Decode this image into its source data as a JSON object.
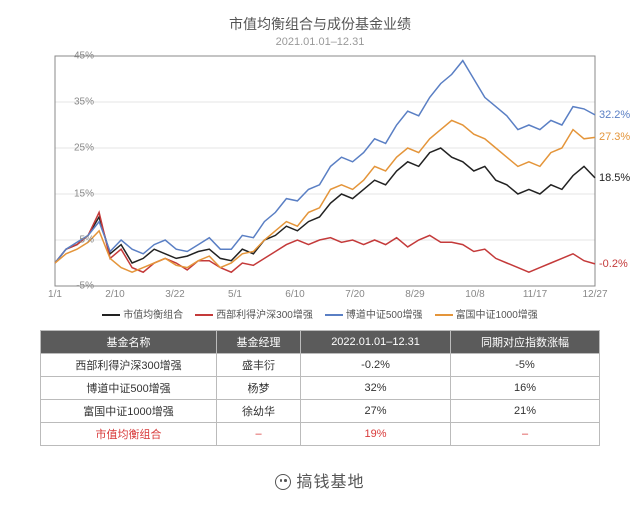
{
  "title": "市值均衡组合与成份基金业绩",
  "subtitle": "2021.01.01–12.31",
  "chart": {
    "type": "line",
    "ylim": [
      -5,
      45
    ],
    "yticks": [
      -5,
      5,
      15,
      25,
      35,
      45
    ],
    "ytick_labels": [
      "-5%",
      "5%",
      "15%",
      "25%",
      "35%",
      "45%"
    ],
    "xtick_labels": [
      "1/1",
      "2/10",
      "3/22",
      "5/1",
      "6/10",
      "7/20",
      "8/29",
      "10/8",
      "11/17",
      "12/27"
    ],
    "x_count": 50,
    "background_color": "#ffffff",
    "grid_color": "#e5e5e5",
    "series": [
      {
        "name": "市值均衡组合",
        "color": "#222222",
        "end_label": "18.5%",
        "data": [
          0,
          3,
          4,
          6,
          10,
          2,
          4,
          0,
          1,
          3,
          2,
          1,
          1.5,
          2.5,
          3,
          1,
          0.5,
          3,
          2,
          5,
          6,
          8,
          7,
          9,
          10,
          13,
          15,
          14,
          16,
          18,
          17,
          20,
          22,
          21,
          24,
          25,
          23,
          22,
          20,
          21,
          18,
          17,
          15,
          16,
          15,
          17,
          16,
          19,
          21,
          18.5
        ]
      },
      {
        "name": "西部利得沪深300增强",
        "color": "#c43a3a",
        "end_label": "-0.2%",
        "data": [
          0,
          3,
          4,
          6,
          11,
          1,
          3,
          -1,
          -2,
          0,
          1,
          0,
          -1.5,
          0.5,
          0.5,
          -1,
          -2,
          0,
          -0.5,
          1,
          2.5,
          4,
          5,
          4,
          5,
          5.5,
          4.5,
          5,
          4,
          5,
          4,
          5.5,
          3.5,
          5,
          6,
          4.5,
          4.5,
          4,
          2.5,
          3,
          1,
          0,
          -1,
          -2,
          -1,
          0,
          1,
          2,
          0.5,
          -0.2
        ]
      },
      {
        "name": "博道中证500增强",
        "color": "#5a7fc4",
        "end_label": "32.2%",
        "data": [
          0,
          3,
          4.5,
          6,
          9,
          2.5,
          5,
          3,
          2,
          4,
          5,
          3,
          2.5,
          4,
          5.5,
          3,
          3,
          6,
          5.5,
          9,
          11,
          14,
          13.5,
          16,
          17,
          21,
          23,
          22,
          24,
          27,
          26,
          30,
          33,
          32,
          36,
          39,
          41,
          44,
          40,
          36,
          34,
          32,
          29,
          30,
          29,
          31,
          30,
          34,
          33.5,
          32.2
        ]
      },
      {
        "name": "富国中证1000增强",
        "color": "#e4953a",
        "end_label": "27.3%",
        "data": [
          0,
          2,
          3,
          4.5,
          7,
          1,
          -1,
          -2,
          -1,
          0,
          1,
          -0.5,
          -1,
          0.5,
          1.5,
          -1,
          0,
          2,
          2.5,
          5,
          7,
          9,
          8,
          11,
          12,
          16,
          17,
          16,
          18,
          21,
          20,
          23,
          25,
          24,
          27,
          29,
          31,
          30,
          28,
          27,
          25,
          23,
          21,
          22,
          21,
          24,
          25,
          29,
          27,
          27.3
        ]
      }
    ]
  },
  "legend": [
    {
      "label": "市值均衡组合",
      "color": "#222222"
    },
    {
      "label": "西部利得沪深300增强",
      "color": "#c43a3a"
    },
    {
      "label": "博道中证500增强",
      "color": "#5a7fc4"
    },
    {
      "label": "富国中证1000增强",
      "color": "#e4953a"
    }
  ],
  "table": {
    "columns": [
      "基金名称",
      "基金经理",
      "2022.01.01–12.31",
      "同期对应指数涨幅"
    ],
    "rows": [
      [
        "西部利得沪深300增强",
        "盛丰衍",
        "-0.2%",
        "-5%"
      ],
      [
        "博道中证500增强",
        "杨梦",
        "32%",
        "16%"
      ],
      [
        "富国中证1000增强",
        "徐幼华",
        "27%",
        "21%"
      ]
    ],
    "portfolio_row": [
      "市值均衡组合",
      "–",
      "19%",
      "–"
    ]
  },
  "footer": "搞钱基地"
}
